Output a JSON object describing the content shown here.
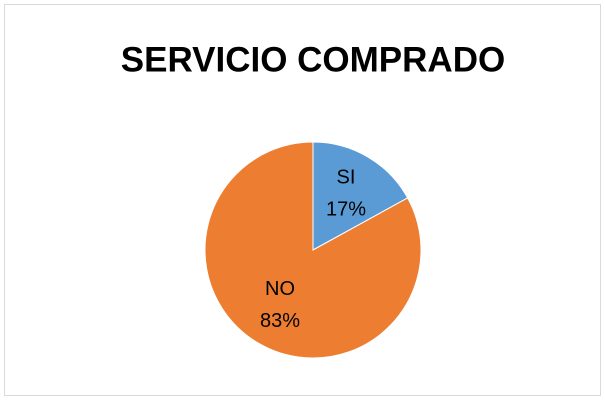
{
  "chart_data": {
    "type": "pie",
    "title": "SERVICIO COMPRADO",
    "categories": [
      "SI",
      "NO"
    ],
    "values": [
      17,
      83
    ],
    "value_labels": [
      "17%",
      "83%"
    ],
    "colors": [
      "#5b9bd5",
      "#ed7d31"
    ]
  }
}
